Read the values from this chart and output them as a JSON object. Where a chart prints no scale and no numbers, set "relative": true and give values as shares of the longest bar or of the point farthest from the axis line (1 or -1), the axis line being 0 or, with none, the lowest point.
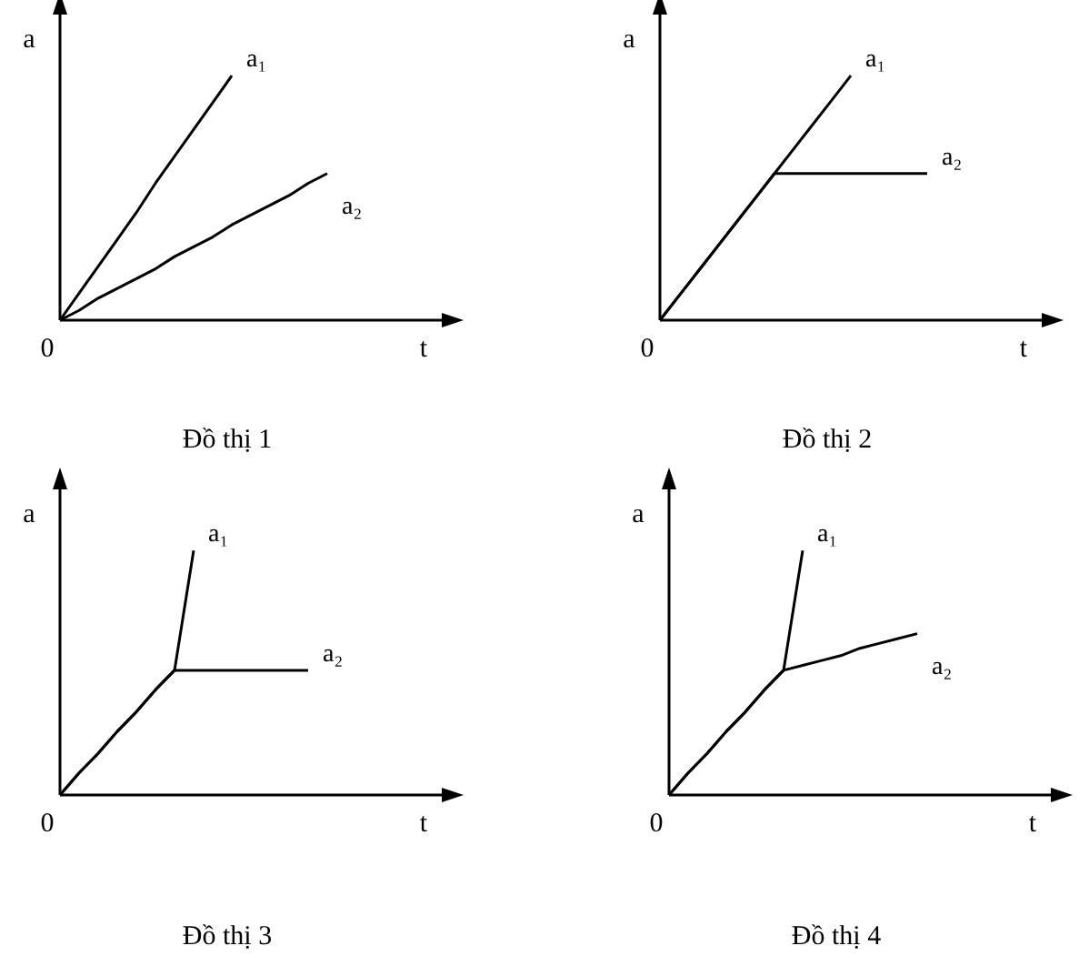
{
  "chart_data": [
    {
      "type": "line",
      "relative": true,
      "title": "Đồ thị 1",
      "xlabel": "t",
      "ylabel": "a",
      "annotations": [
        "0"
      ],
      "categories": [
        null,
        null,
        null,
        null,
        null,
        null,
        null,
        null,
        null,
        null,
        null,
        null,
        null,
        null,
        null,
        null,
        null,
        null,
        null,
        null,
        null
      ],
      "series": [
        {
          "name": "a₁",
          "color": "#000000",
          "values": [
            0,
            0.11,
            0.22,
            0.33,
            0.44,
            0.56,
            0.67,
            0.78,
            0.89,
            1,
            null,
            null,
            null,
            null,
            null,
            null,
            null,
            null,
            null,
            null,
            null
          ]
        },
        {
          "name": "a₂",
          "color": "#000000",
          "values": [
            0,
            0.04,
            0.09,
            0.13,
            0.17,
            0.21,
            0.26,
            0.3,
            0.34,
            0.39,
            0.43,
            0.47,
            0.51,
            0.56,
            0.6,
            null,
            null,
            null,
            null,
            null,
            null
          ]
        }
      ]
    },
    {
      "type": "line",
      "relative": true,
      "title": "Đồ thị 2",
      "xlabel": "t",
      "ylabel": "a",
      "annotations": [
        "0"
      ],
      "categories": [
        null,
        null,
        null,
        null,
        null,
        null,
        null,
        null,
        null,
        null,
        null,
        null,
        null,
        null,
        null,
        null,
        null,
        null,
        null,
        null,
        null
      ],
      "series": [
        {
          "name": "a₁",
          "color": "#000000",
          "values": [
            0,
            0.1,
            0.2,
            0.3,
            0.4,
            0.5,
            0.6,
            0.7,
            0.8,
            0.9,
            1,
            null,
            null,
            null,
            null,
            null,
            null,
            null,
            null,
            null,
            null
          ]
        },
        {
          "name": "a₂",
          "color": "#000000",
          "values": [
            0,
            0.1,
            0.2,
            0.3,
            0.4,
            0.5,
            0.6,
            0.6,
            0.6,
            0.6,
            0.6,
            0.6,
            0.6,
            0.6,
            0.6,
            null,
            null,
            null,
            null,
            null,
            null
          ]
        }
      ]
    },
    {
      "type": "line",
      "relative": true,
      "title": "Đồ thị 3",
      "xlabel": "t",
      "ylabel": "a",
      "annotations": [
        "0"
      ],
      "categories": [
        null,
        null,
        null,
        null,
        null,
        null,
        null,
        null,
        null,
        null,
        null,
        null,
        null,
        null,
        null,
        null,
        null,
        null,
        null,
        null,
        null
      ],
      "series": [
        {
          "name": "a₁",
          "color": "#000000",
          "values": [
            0,
            0.09,
            0.17,
            0.26,
            0.34,
            0.43,
            0.51,
            1,
            null,
            null,
            null,
            null,
            null,
            null,
            null,
            null,
            null,
            null,
            null,
            null,
            null
          ]
        },
        {
          "name": "a₂",
          "color": "#000000",
          "values": [
            0,
            0.09,
            0.17,
            0.26,
            0.34,
            0.43,
            0.51,
            0.51,
            0.51,
            0.51,
            0.51,
            0.51,
            0.51,
            0.51,
            null,
            null,
            null,
            null,
            null,
            null,
            null
          ]
        }
      ]
    },
    {
      "type": "line",
      "relative": true,
      "title": "Đồ thị 4",
      "xlabel": "t",
      "ylabel": "a",
      "annotations": [
        "0"
      ],
      "categories": [
        null,
        null,
        null,
        null,
        null,
        null,
        null,
        null,
        null,
        null,
        null,
        null,
        null,
        null,
        null,
        null,
        null,
        null,
        null,
        null,
        null
      ],
      "series": [
        {
          "name": "a₁",
          "color": "#000000",
          "values": [
            0,
            0.09,
            0.17,
            0.26,
            0.34,
            0.43,
            0.51,
            1,
            null,
            null,
            null,
            null,
            null,
            null,
            null,
            null,
            null,
            null,
            null,
            null,
            null
          ]
        },
        {
          "name": "a₂",
          "color": "#000000",
          "values": [
            0,
            0.09,
            0.17,
            0.26,
            0.34,
            0.43,
            0.51,
            0.53,
            0.55,
            0.57,
            0.6,
            0.62,
            0.64,
            0.66,
            null,
            null,
            null,
            null,
            null,
            null,
            null
          ]
        }
      ]
    }
  ]
}
